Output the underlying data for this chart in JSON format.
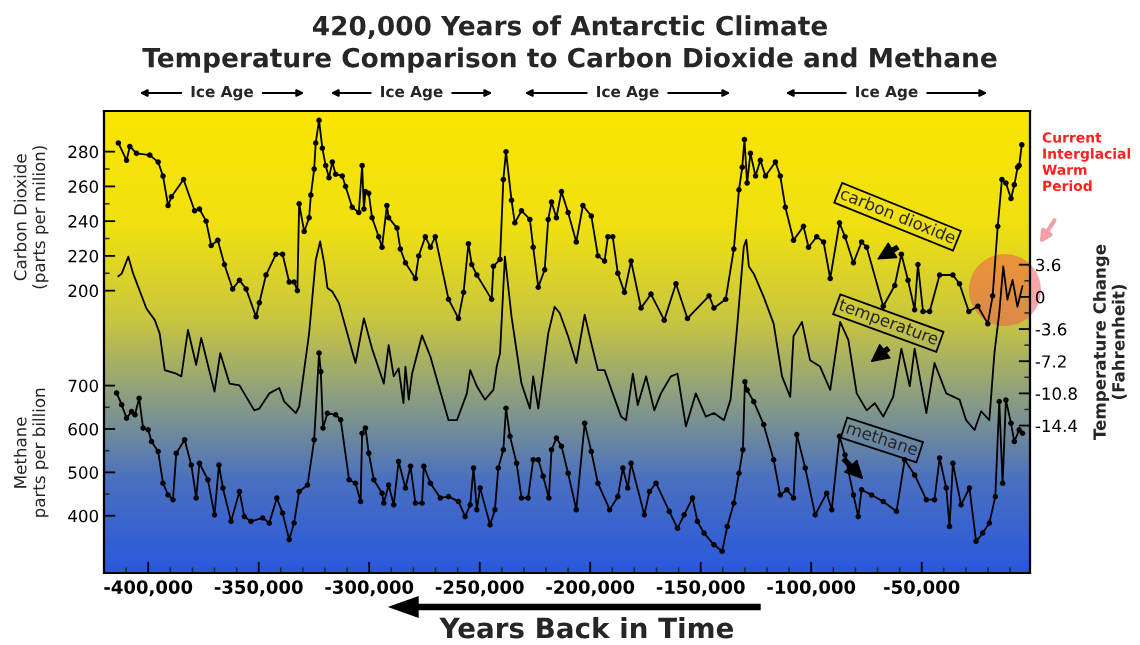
{
  "chart_data": {
    "type": "line",
    "title": "420,000 Years of Antarctic Climate",
    "subtitle": "Temperature Comparison to Carbon Dioxide and Methane",
    "xlabel": "Years Back in Time",
    "ylabel": "Carbon Dioxide\n(parts per milion)",
    "y2label": "Temperature Change\n(Fahrenheit)",
    "y3label": "Methane\nparts per billion",
    "annotations": [
      "Ice Age",
      "Ice Age",
      "Ice Age",
      "Ice Age",
      "Current\nInterglacial\nWarm\nPeriod"
    ],
    "xlim": [
      -420000,
      -1000
    ],
    "xticks": [
      {
        "value": -410000,
        "label": null
      },
      {
        "value": -400000,
        "label": "-400,000"
      },
      {
        "value": -390000,
        "label": null
      },
      {
        "value": -380000,
        "label": null
      },
      {
        "value": -370000,
        "label": null
      },
      {
        "value": -360000,
        "label": null
      },
      {
        "value": -350000,
        "label": "-350,000"
      },
      {
        "value": -340000,
        "label": null
      },
      {
        "value": -330000,
        "label": null
      },
      {
        "value": -320000,
        "label": null
      },
      {
        "value": -310000,
        "label": null
      },
      {
        "value": -300000,
        "label": "-300,000"
      },
      {
        "value": -290000,
        "label": null
      },
      {
        "value": -280000,
        "label": null
      },
      {
        "value": -270000,
        "label": null
      },
      {
        "value": -260000,
        "label": null
      },
      {
        "value": -250000,
        "label": "-250,000"
      },
      {
        "value": -240000,
        "label": null
      },
      {
        "value": -230000,
        "label": null
      },
      {
        "value": -220000,
        "label": null
      },
      {
        "value": -210000,
        "label": null
      },
      {
        "value": -200000,
        "label": "-200,000"
      },
      {
        "value": -190000,
        "label": null
      },
      {
        "value": -180000,
        "label": null
      },
      {
        "value": -170000,
        "label": null
      },
      {
        "value": -160000,
        "label": null
      },
      {
        "value": -150000,
        "label": "-150,000"
      },
      {
        "value": -140000,
        "label": null
      },
      {
        "value": -130000,
        "label": null
      },
      {
        "value": -120000,
        "label": null
      },
      {
        "value": -110000,
        "label": null
      },
      {
        "value": -100000,
        "label": "-100,000"
      },
      {
        "value": -90000,
        "label": null
      },
      {
        "value": -80000,
        "label": null
      },
      {
        "value": -70000,
        "label": null
      },
      {
        "value": -60000,
        "label": null
      },
      {
        "value": -50000,
        "label": "-50,000"
      },
      {
        "value": -40000,
        "label": null
      },
      {
        "value": -30000,
        "label": null
      },
      {
        "value": -20000,
        "label": null
      },
      {
        "value": -10000,
        "label": null
      }
    ],
    "ylim": [
      37.5,
      303.4
    ],
    "yticks": [
      200,
      {
        "value": 210,
        "label": null
      },
      220,
      {
        "value": 230,
        "label": null
      },
      240,
      {
        "value": 250,
        "label": null
      },
      260,
      {
        "value": 270,
        "label": null
      },
      280
    ],
    "y2lim": [
      -30.9,
      20.8
    ],
    "y2ticks": [
      3.6,
      {
        "value": 1.8,
        "label": null
      },
      0,
      {
        "value": -1.8,
        "label": null
      },
      {
        "value": -3.6,
        "label": "-3.6"
      },
      {
        "value": -5.4,
        "label": null
      },
      {
        "value": -7.2,
        "label": "-7.2"
      },
      {
        "value": -9,
        "label": null
      },
      {
        "value": -10.8,
        "label": "-10.8"
      },
      {
        "value": -12.6,
        "label": null
      },
      {
        "value": -14.4,
        "label": "-14.4"
      }
    ],
    "y3lim": [
      268,
      1333
    ],
    "y3ticks": [
      400,
      {
        "value": 450,
        "label": null
      },
      500,
      {
        "value": 550,
        "label": null
      },
      600,
      {
        "value": 650,
        "label": null
      },
      700
    ],
    "series": [
      {
        "name": "carbon dioxide",
        "color": "#000000",
        "marker": "circle",
        "x": [
          -413500,
          -409800,
          -408300,
          -405300,
          -399300,
          -395500,
          -393300,
          -391000,
          -389500,
          -384000,
          -379000,
          -376800,
          -373800,
          -371500,
          -368500,
          -365500,
          -361800,
          -358700,
          -355700,
          -351200,
          -349700,
          -346700,
          -342200,
          -339200,
          -336200,
          -334000,
          -332500,
          -331700,
          -329400,
          -327200,
          -326400,
          -324900,
          -324200,
          -322700,
          -321200,
          -319700,
          -318200,
          -316700,
          -315200,
          -312200,
          -310700,
          -307700,
          -304700,
          -303200,
          -302400,
          -301700,
          -300200,
          -298700,
          -295700,
          -294200,
          -292000,
          -291200,
          -287400,
          -285900,
          -283600,
          -279100,
          -277600,
          -274600,
          -272300,
          -270100,
          -264100,
          -259600,
          -257300,
          -255100,
          -253600,
          -251300,
          -244600,
          -243800,
          -240800,
          -239300,
          -238100,
          -235600,
          -234100,
          -231100,
          -227300,
          -225800,
          -223500,
          -220600,
          -219000,
          -217500,
          -215300,
          -213000,
          -210000,
          -206300,
          -203300,
          -199500,
          -196500,
          -193500,
          -192000,
          -189800,
          -187500,
          -184500,
          -181500,
          -177000,
          -172500,
          -166500,
          -161200,
          -156000,
          -146200,
          -144000,
          -138700,
          -135000,
          -132700,
          -131200,
          -130200,
          -129000,
          -127500,
          -125200,
          -123000,
          -120700,
          -116200,
          -114000,
          -111700,
          -108000,
          -103500,
          -101200,
          -97500,
          -94400,
          -91400,
          -87200,
          -84700,
          -80900,
          -77200,
          -74900,
          -67400,
          -62200,
          -59200,
          -56200,
          -53200,
          -51700,
          -49400,
          -46400,
          -41900,
          -35900,
          -32900,
          -28700,
          -24600,
          -20100,
          -17900,
          -15600,
          -13700,
          -11900,
          -9600,
          -8100,
          -6600,
          -5900,
          -4700
        ],
        "values": [
          285,
          275,
          283,
          279,
          278,
          274,
          266,
          249,
          254,
          264,
          246,
          247,
          240,
          226,
          229,
          215,
          201,
          206,
          201,
          185,
          193,
          209,
          221,
          221,
          205,
          205,
          200,
          250,
          234,
          242,
          255,
          270,
          285,
          298,
          282,
          272,
          265,
          274,
          267,
          266,
          260,
          248,
          245,
          272,
          247,
          257,
          256,
          242,
          231,
          225,
          249,
          242,
          236,
          224,
          216,
          207,
          220,
          231,
          225,
          231,
          195,
          184,
          199,
          227,
          215,
          209,
          195,
          214,
          218,
          264,
          280,
          252,
          239,
          246,
          241,
          225,
          202,
          212,
          241,
          251,
          242,
          257,
          245,
          228,
          249,
          243,
          220,
          217,
          231,
          231,
          210,
          199,
          217,
          190,
          198,
          183,
          204,
          184,
          197,
          190,
          195,
          224,
          258,
          271,
          287,
          262,
          279,
          266,
          275,
          266,
          274,
          266,
          248,
          229,
          237,
          225,
          231,
          228,
          207,
          239,
          231,
          216,
          228,
          225,
          191,
          203,
          221,
          206,
          189,
          215,
          188,
          188,
          209,
          209,
          204,
          188,
          191,
          181,
          197,
          237,
          264,
          262,
          253,
          261,
          271,
          272,
          284
        ]
      },
      {
        "name": "temperature",
        "color": "#000000",
        "marker": "none",
        "axis": "y2",
        "x": [
          -413500,
          -412000,
          -409000,
          -406800,
          -400800,
          -397000,
          -394800,
          -392500,
          -387300,
          -385000,
          -382000,
          -378300,
          -376000,
          -370000,
          -367400,
          -363200,
          -358700,
          -352000,
          -349700,
          -345200,
          -340700,
          -338500,
          -333200,
          -331700,
          -327200,
          -324200,
          -322200,
          -320400,
          -318900,
          -316700,
          -313700,
          -306200,
          -302400,
          -298700,
          -293400,
          -291200,
          -288900,
          -286700,
          -284500,
          -283600,
          -282100,
          -280600,
          -276100,
          -272300,
          -267100,
          -264100,
          -260300,
          -255800,
          -254300,
          -251300,
          -247600,
          -243800,
          -242300,
          -240800,
          -238600,
          -235600,
          -231100,
          -227300,
          -225800,
          -223500,
          -219000,
          -216100,
          -213800,
          -210000,
          -206300,
          -202500,
          -199500,
          -196500,
          -193500,
          -189800,
          -186000,
          -183800,
          -180700,
          -178500,
          -174700,
          -171000,
          -168000,
          -163500,
          -160500,
          -156700,
          -152200,
          -147700,
          -144000,
          -139500,
          -136500,
          -133500,
          -130500,
          -129400,
          -128200,
          -126000,
          -121500,
          -117000,
          -113200,
          -109500,
          -108000,
          -104200,
          -100500,
          -96000,
          -91400,
          -86900,
          -83200,
          -79400,
          -74900,
          -71200,
          -67400,
          -62900,
          -59200,
          -55400,
          -53200,
          -47900,
          -44200,
          -38900,
          -32900,
          -29900,
          -26100,
          -23100,
          -19400,
          -17100,
          -14900,
          -13100,
          -11200,
          -8900,
          -6700,
          -4400
        ],
        "values": [
          2.3,
          2.6,
          4.5,
          2.6,
          -1.3,
          -2.6,
          -4.1,
          -8.2,
          -8.6,
          -8.9,
          -3.7,
          -7.6,
          -4.6,
          -10.6,
          -6.3,
          -9.7,
          -9.9,
          -12.7,
          -12.5,
          -10.8,
          -10.2,
          -11.7,
          -13.0,
          -12.3,
          -4.1,
          4.1,
          6.2,
          3.8,
          1.0,
          0.6,
          -0.7,
          -7.4,
          -2.4,
          -5.8,
          -9.7,
          -5.4,
          -8.9,
          -8.0,
          -11.9,
          -7.8,
          -11.5,
          -8.6,
          -4.3,
          -6.7,
          -11.2,
          -13.8,
          -13.8,
          -10.8,
          -8.2,
          -10.0,
          -11.5,
          -10.4,
          -7.8,
          -6.3,
          4.5,
          -2.2,
          -9.7,
          -12.5,
          -8.9,
          -12.5,
          -4.1,
          -1.1,
          -1.8,
          -4.4,
          -7.4,
          -2.0,
          -5.2,
          -8.2,
          -8.2,
          -10.8,
          -13.4,
          -13.8,
          -8.6,
          -12.1,
          -8.9,
          -12.7,
          -10.8,
          -8.9,
          -8.6,
          -14.5,
          -10.8,
          -13.4,
          -13.0,
          -13.8,
          -11.5,
          -3.3,
          5.6,
          6.4,
          3.4,
          2.6,
          0.0,
          -3.0,
          -8.9,
          -11.2,
          -4.4,
          -2.8,
          -7.1,
          -7.8,
          -10.4,
          -2.8,
          -4.8,
          -10.8,
          -12.7,
          -11.9,
          -13.4,
          -11.2,
          -5.8,
          -10.0,
          -5.8,
          -13.0,
          -7.4,
          -10.8,
          -11.5,
          -13.8,
          -14.9,
          -12.8,
          -13.8,
          -6.3,
          -1.8,
          3.4,
          -0.3,
          1.9,
          -1.1,
          1.2
        ]
      },
      {
        "name": "methane",
        "color": "#000000",
        "marker": "circle",
        "axis": "y3",
        "x": [
          -414300,
          -412000,
          -409800,
          -407500,
          -406000,
          -404100,
          -402300,
          -400000,
          -398500,
          -395500,
          -393300,
          -391000,
          -388800,
          -387300,
          -383500,
          -380500,
          -378300,
          -376800,
          -373000,
          -370000,
          -368000,
          -366200,
          -362500,
          -358700,
          -356500,
          -353500,
          -348200,
          -345200,
          -341800,
          -339200,
          -336200,
          -334000,
          -331700,
          -327900,
          -324900,
          -322700,
          -321900,
          -320900,
          -318900,
          -315200,
          -312900,
          -309100,
          -306200,
          -303900,
          -303200,
          -301700,
          -300200,
          -297900,
          -294200,
          -293400,
          -291200,
          -288900,
          -286700,
          -283600,
          -281300,
          -279100,
          -276100,
          -275300,
          -272300,
          -267800,
          -264100,
          -259600,
          -256600,
          -254300,
          -252800,
          -251300,
          -249800,
          -245300,
          -243100,
          -241600,
          -239300,
          -238100,
          -236300,
          -233300,
          -231100,
          -228100,
          -225800,
          -223500,
          -221300,
          -218700,
          -217500,
          -215300,
          -213000,
          -210000,
          -206300,
          -202500,
          -199500,
          -196500,
          -191200,
          -187500,
          -185200,
          -183000,
          -181500,
          -175500,
          -173200,
          -170200,
          -164200,
          -160500,
          -157500,
          -153700,
          -151500,
          -148500,
          -144000,
          -140300,
          -138000,
          -135000,
          -132700,
          -130900,
          -130000,
          -129000,
          -126000,
          -121500,
          -117000,
          -114000,
          -111000,
          -108000,
          -106500,
          -102700,
          -98200,
          -93000,
          -90700,
          -87200,
          -84700,
          -80900,
          -78700,
          -77200,
          -72700,
          -67400,
          -61400,
          -57700,
          -53200,
          -47900,
          -44200,
          -41900,
          -38900,
          -37400,
          -35900,
          -32200,
          -28400,
          -25400,
          -22400,
          -19400,
          -16700,
          -14900,
          -13400,
          -11900,
          -9600,
          -8100,
          -5900,
          -4400
        ],
        "values": [
          683,
          656,
          625,
          640,
          633,
          671,
          602,
          598,
          571,
          548,
          475,
          448,
          437,
          544,
          575,
          517,
          441,
          521,
          483,
          402,
          517,
          464,
          387,
          456,
          398,
          387,
          395,
          383,
          441,
          406,
          345,
          383,
          456,
          471,
          575,
          775,
          732,
          602,
          636,
          633,
          621,
          483,
          475,
          433,
          590,
          602,
          544,
          483,
          452,
          429,
          471,
          425,
          525,
          464,
          514,
          429,
          429,
          514,
          475,
          441,
          444,
          433,
          398,
          425,
          510,
          414,
          464,
          379,
          414,
          510,
          552,
          648,
          583,
          521,
          441,
          441,
          529,
          529,
          491,
          441,
          552,
          579,
          560,
          498,
          414,
          613,
          548,
          475,
          414,
          444,
          510,
          464,
          521,
          402,
          456,
          475,
          410,
          371,
          402,
          441,
          387,
          360,
          333,
          318,
          375,
          429,
          498,
          552,
          709,
          690,
          663,
          610,
          529,
          448,
          460,
          441,
          587,
          510,
          402,
          452,
          414,
          583,
          540,
          448,
          398,
          460,
          448,
          433,
          410,
          529,
          494,
          437,
          437,
          533,
          464,
          375,
          521,
          425,
          464,
          341,
          360,
          383,
          444,
          663,
          475,
          667,
          613,
          571,
          598,
          590
        ]
      }
    ]
  }
}
